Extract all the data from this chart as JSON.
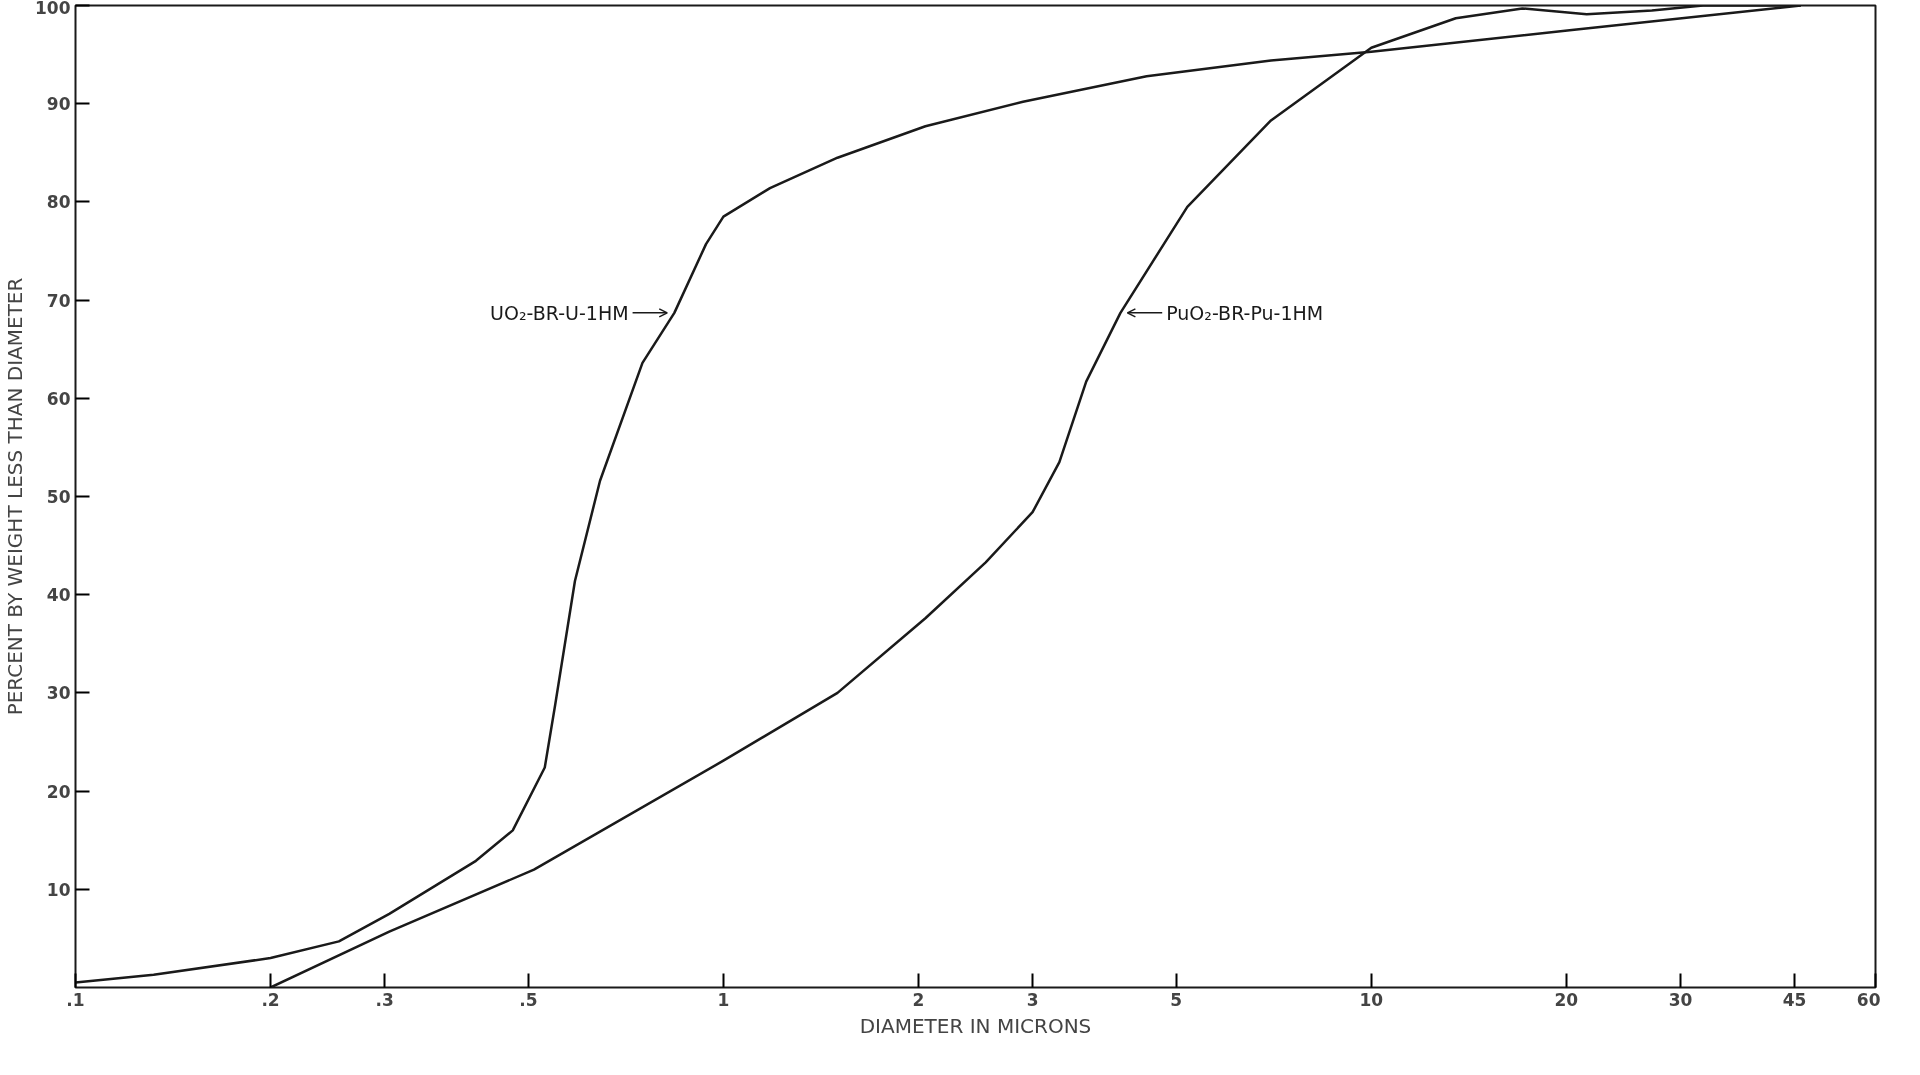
{
  "chart_data": {
    "type": "line",
    "xlabel": "DIAMETER IN MICRONS",
    "ylabel": "PERCENT BY WEIGHT LESS THAN DIAMETER",
    "log": "x",
    "grid": false,
    "marker": "none",
    "line_style": "solid",
    "xlim": [
      0.1,
      60
    ],
    "ylim": [
      0,
      100
    ],
    "xticks": [
      {
        "value": 0.1,
        "label": ".1"
      },
      {
        "value": 0.2,
        "label": ".2"
      },
      {
        "value": 0.3,
        "label": ".3"
      },
      {
        "value": 0.5,
        "label": ".5"
      },
      1,
      2,
      3,
      5,
      10,
      20,
      30,
      45,
      60
    ],
    "yticks": [
      10,
      20,
      30,
      40,
      50,
      60,
      70,
      80,
      90,
      100
    ],
    "series": [
      {
        "name": "UO₂-BR-U-1HM",
        "color": "#1a1a1a",
        "x": [
          0.1,
          0.132,
          0.2,
          0.255,
          0.305,
          0.415,
          0.473,
          0.53,
          0.55,
          0.59,
          0.645,
          0.75,
          0.84,
          0.94,
          1,
          1.18,
          1.5,
          2.05,
          2.9,
          4.5,
          7.0,
          10,
          20.4,
          46
        ],
        "values": [
          0.5,
          1.3,
          3,
          4.7,
          7.5,
          12.9,
          16,
          22.4,
          28.8,
          41.4,
          51.6,
          63.6,
          68.7,
          75.7,
          78.5,
          81.4,
          84.5,
          87.7,
          90.2,
          92.8,
          94.4,
          95.3,
          97.5,
          100
        ]
      },
      {
        "name": "PuO₂-BR-Pu-1HM",
        "color": "#1a1a1a",
        "x": [
          0.2,
          0.305,
          0.51,
          1,
          1.5,
          2.05,
          2.54,
          3,
          3.3,
          3.63,
          4.1,
          5.2,
          7.0,
          10,
          13.5,
          17.1,
          21.5,
          27.1,
          32.5,
          46
        ],
        "values": [
          0,
          5.7,
          12,
          23.1,
          30,
          37.6,
          43.3,
          48.4,
          53.5,
          61.7,
          68.7,
          79.5,
          88.3,
          95.7,
          98.7,
          99.7,
          99.1,
          99.5,
          100,
          100
        ]
      }
    ]
  }
}
